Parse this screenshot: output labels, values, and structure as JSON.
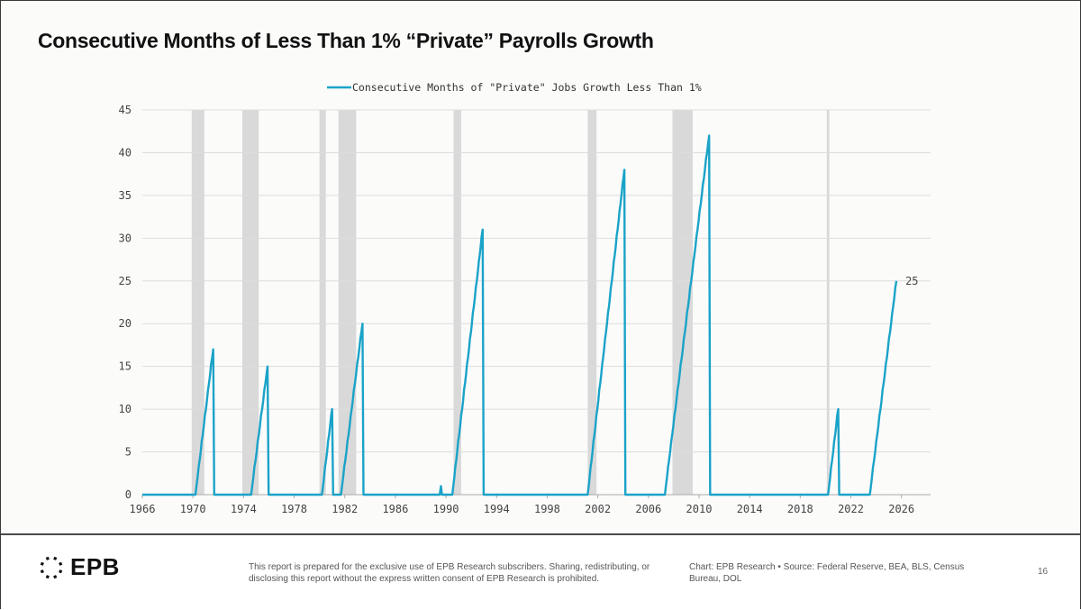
{
  "page": {
    "title": "Consecutive Months of Less Than 1% “Private” Payrolls Growth",
    "page_number": "16"
  },
  "footer": {
    "logo_text": "EPB",
    "disclaimer": "This report is prepared for the exclusive use of EPB Research subscribers. Sharing, redistributing, or disclosing this report without the express written consent of EPB Research is prohibited.",
    "source": "Chart: EPB Research • Source: Federal Reserve, BEA, BLS, Census Bureau, DOL"
  },
  "colors": {
    "series": "#1aa3c8",
    "recession": "#d9d9d9",
    "grid": "#dddddd",
    "axis_text": "#444444"
  },
  "chart_data": {
    "type": "line",
    "title": "Consecutive Months of Less Than 1% “Private” Payrolls Growth",
    "xlabel": "",
    "ylabel": "",
    "xlim": [
      1966,
      2028.3
    ],
    "ylim": [
      0,
      45
    ],
    "grid": true,
    "legend": {
      "position": "top-center",
      "entries": [
        "Consecutive Months of \"Private\" Jobs Growth Less Than 1%"
      ]
    },
    "x_ticks": [
      1966,
      1970,
      1974,
      1978,
      1982,
      1986,
      1990,
      1994,
      1998,
      2002,
      2006,
      2010,
      2014,
      2018,
      2022,
      2026
    ],
    "y_ticks": [
      0,
      5,
      10,
      15,
      20,
      25,
      30,
      35,
      40,
      45
    ],
    "recessions": [
      [
        1969.9,
        1970.9
      ],
      [
        1973.9,
        1975.2
      ],
      [
        1980.0,
        1980.5
      ],
      [
        1981.5,
        1982.9
      ],
      [
        1990.6,
        1991.2
      ],
      [
        2001.2,
        2001.9
      ],
      [
        2007.9,
        2009.5
      ],
      [
        2020.1,
        2020.3
      ]
    ],
    "series": [
      {
        "name": "Consecutive Months of \"Private\" Jobs Growth Less Than 1%",
        "episodes": [
          {
            "start": 1970.2,
            "peak_x": 1971.6,
            "peak": 17
          },
          {
            "start": 1974.6,
            "peak_x": 1975.9,
            "peak": 15
          },
          {
            "start": 1980.2,
            "peak_x": 1981.0,
            "peak": 10
          },
          {
            "start": 1981.7,
            "peak_x": 1983.4,
            "peak": 20
          },
          {
            "start": 1989.5,
            "peak_x": 1989.6,
            "peak": 1
          },
          {
            "start": 1990.5,
            "peak_x": 1992.9,
            "peak": 31
          },
          {
            "start": 2001.2,
            "peak_x": 2004.1,
            "peak": 38
          },
          {
            "start": 2007.3,
            "peak_x": 2010.8,
            "peak": 42
          },
          {
            "start": 2020.2,
            "peak_x": 2021.0,
            "peak": 10
          },
          {
            "start": 2023.5,
            "peak_x": 2025.6,
            "peak": 25,
            "ongoing": true
          }
        ],
        "x_start": 1966,
        "last_value_label": "25"
      }
    ]
  }
}
